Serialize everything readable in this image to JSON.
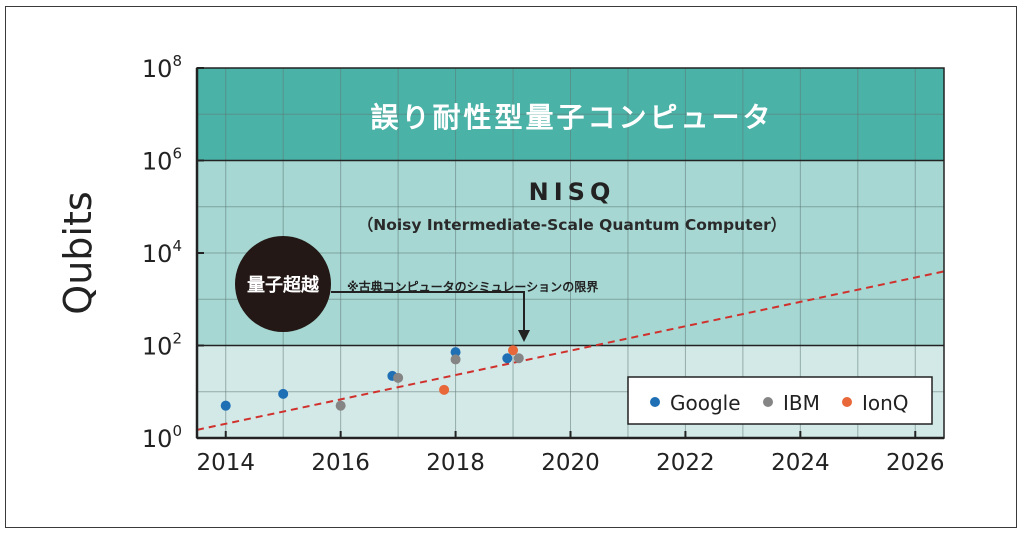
{
  "chart_data": {
    "type": "scatter",
    "ylabel": "Qubits",
    "y_scale": "log",
    "ylim": [
      1,
      100000000
    ],
    "xlim": [
      2013.5,
      2026.5
    ],
    "x_ticks": [
      "2014",
      "2016",
      "2018",
      "2020",
      "2022",
      "2024",
      "2026"
    ],
    "y_ticks": [
      {
        "base": "10",
        "exp": "0"
      },
      {
        "base": "10",
        "exp": "2"
      },
      {
        "base": "10",
        "exp": "4"
      },
      {
        "base": "10",
        "exp": "6"
      },
      {
        "base": "10",
        "exp": "8"
      }
    ],
    "grid": true,
    "regions": [
      {
        "label": "",
        "y_from": 1,
        "y_to": 100,
        "color": "#d3e9e7"
      },
      {
        "label": "",
        "y_from": 100,
        "y_to": 1000000,
        "color": "#a6d7d2"
      },
      {
        "label": "誤り耐性型量子コンピュータ",
        "y_from": 1000000,
        "y_to": 100000000,
        "color": "#4bb2a7"
      }
    ],
    "nisq": {
      "title": "NISQ",
      "subtitle": "（Noisy Intermediate-Scale Quantum Computer）"
    },
    "trend_line": {
      "label": "※古典コンピュータのシミュレーションの限界",
      "from": [
        2013.5,
        1.5
      ],
      "to": [
        2026.5,
        4000
      ],
      "color": "#d0312d"
    },
    "marker": {
      "x": 2019.2,
      "y": 140
    },
    "supremacy_badge": {
      "label": "量子超越"
    },
    "legend": {
      "position": "bottom-right"
    },
    "series": [
      {
        "name": "Google",
        "color": "#1f6fb5",
        "points": [
          [
            2014,
            5
          ],
          [
            2015,
            9
          ],
          [
            2016.9,
            22
          ],
          [
            2018,
            72
          ],
          [
            2018.9,
            53
          ]
        ]
      },
      {
        "name": "IBM",
        "color": "#858585",
        "points": [
          [
            2016,
            5
          ],
          [
            2017,
            20
          ],
          [
            2018,
            50
          ],
          [
            2019.1,
            53
          ]
        ]
      },
      {
        "name": "IonQ",
        "color": "#e8683a",
        "points": [
          [
            2017.8,
            11
          ],
          [
            2019,
            79
          ]
        ]
      }
    ]
  }
}
